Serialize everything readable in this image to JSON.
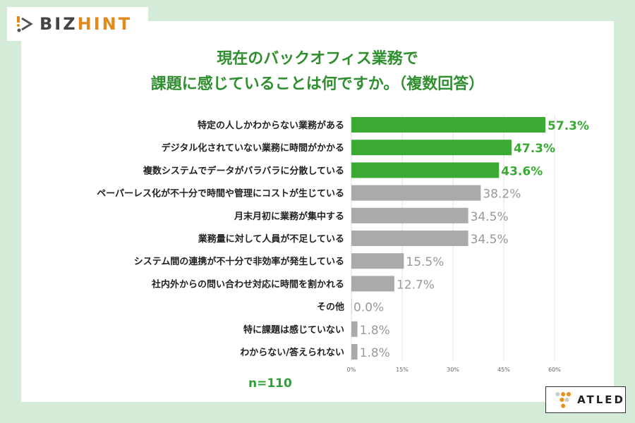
{
  "logos": {
    "top_left": "BIZHINT",
    "bottom_right": "ATLED"
  },
  "title_lines": [
    "現在のバックオフィス業務で",
    "課題に感じていることは何ですか。（複数回答）"
  ],
  "sample_size": "n=110",
  "colors": {
    "highlight": "#3aaa35",
    "other": "#aaaaaa",
    "title": "#2f8f2f",
    "background": "#d3ebd7"
  },
  "chart_data": {
    "type": "bar",
    "orientation": "horizontal",
    "title": "現在のバックオフィス業務で課題に感じていることは何ですか。（複数回答）",
    "categories": [
      "特定の人しかわからない業務がある",
      "デジタル化されていない業務に時間がかかる",
      "複数システムでデータがバラバラに分散している",
      "ペーパーレス化が不十分で時間や管理にコストが生じている",
      "月末月初に業務が集中する",
      "業務量に対して人員が不足している",
      "システム間の連携が不十分で非効率が発生している",
      "社内外からの問い合わせ対応に時間を割かれる",
      "その他",
      "特に課題は感じていない",
      "わからない/答えられない"
    ],
    "values": [
      57.3,
      47.3,
      43.6,
      38.2,
      34.5,
      34.5,
      15.5,
      12.7,
      0.0,
      1.8,
      1.8
    ],
    "data_labels": [
      "57.3%",
      "47.3%",
      "43.6%",
      "38.2%",
      "34.5%",
      "34.5%",
      "15.5%",
      "12.7%",
      "0.0%",
      "1.8%",
      "1.8%"
    ],
    "highlighted_count": 3,
    "xlim": [
      0,
      60
    ],
    "xticks": [
      "0%",
      "15%",
      "30%",
      "45%",
      "60%"
    ],
    "xtick_values": [
      0,
      15,
      30,
      45,
      60
    ],
    "grid": true
  }
}
